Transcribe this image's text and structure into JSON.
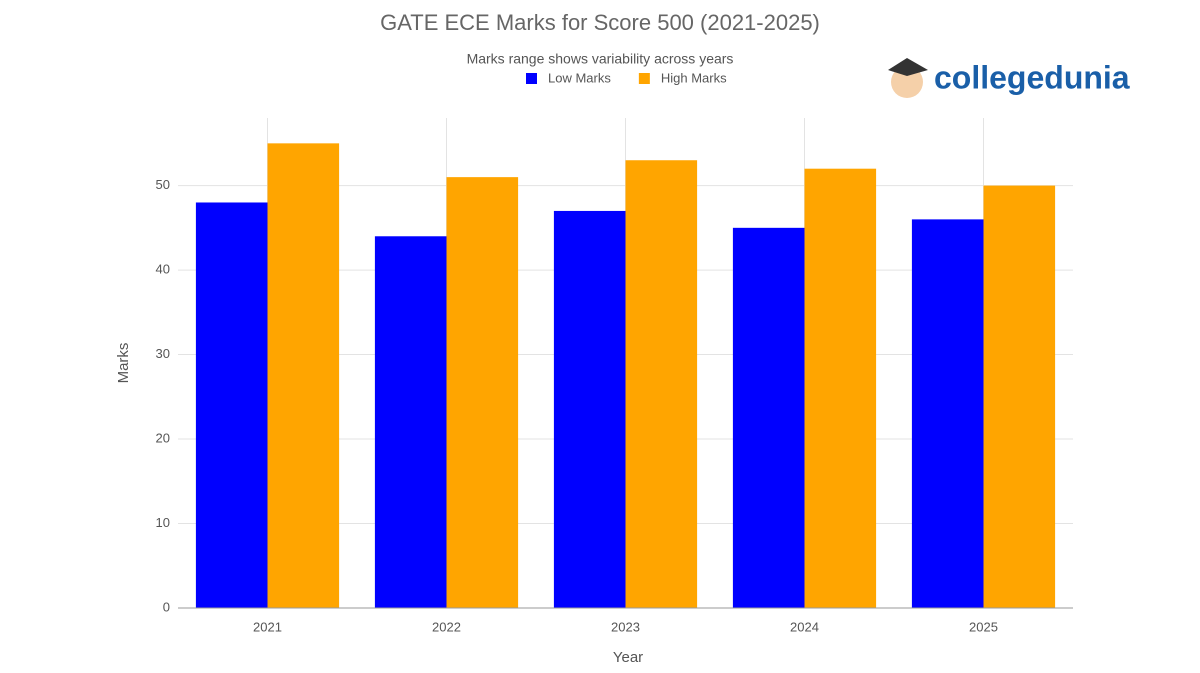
{
  "chart_data": {
    "type": "bar",
    "title": "GATE ECE Marks for Score 500 (2021-2025)",
    "subtitle": "Marks range shows variability across years",
    "watermark": "collegedunia",
    "x_label": "Year",
    "y_label": "Marks",
    "categories": [
      "2021",
      "2022",
      "2023",
      "2024",
      "2025"
    ],
    "series": [
      {
        "name": "Low Marks",
        "color": "#0000ff",
        "values": [
          48,
          44,
          47,
          45,
          46
        ]
      },
      {
        "name": "High Marks",
        "color": "#ffa500",
        "values": [
          55,
          51,
          53,
          52,
          50
        ]
      }
    ],
    "ylim": [
      0,
      58
    ],
    "yticks": [
      0,
      10,
      20,
      30,
      40,
      50
    ],
    "grid": true,
    "legend": "top"
  }
}
